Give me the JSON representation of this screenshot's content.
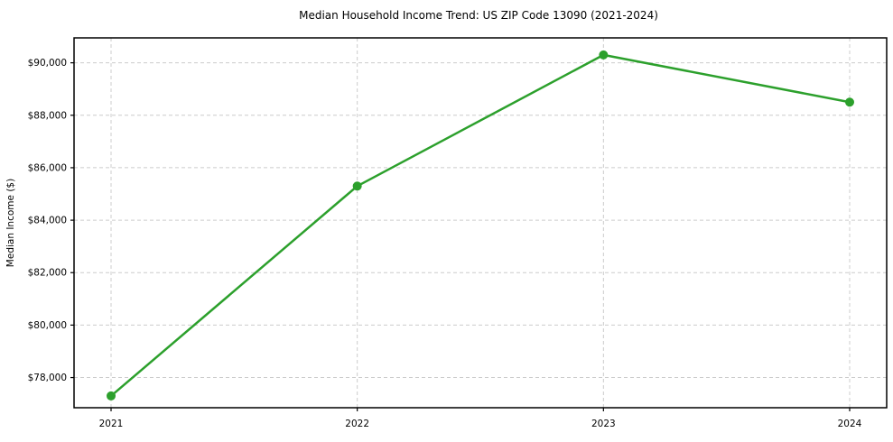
{
  "chart_data": {
    "type": "line",
    "title": "Median Household Income Trend: US ZIP Code 13090 (2021-2024)",
    "xlabel": "",
    "ylabel": "Median Income ($)",
    "categories": [
      "2021",
      "2022",
      "2023",
      "2024"
    ],
    "series": [
      {
        "name": "Median Household Income",
        "values": [
          77300,
          85300,
          90300,
          88500
        ]
      }
    ],
    "yticks": [
      78000,
      80000,
      82000,
      84000,
      86000,
      88000,
      90000
    ],
    "ytick_labels": [
      "$78,000",
      "$80,000",
      "$82,000",
      "$84,000",
      "$86,000",
      "$88,000",
      "$90,000"
    ],
    "ylim": [
      76850,
      90950
    ],
    "grid": true,
    "legend": "none",
    "colors": {
      "line": "#2ca02c",
      "marker": "#2ca02c",
      "gridline": "#cccccc",
      "spine": "#000000",
      "background": "#ffffff",
      "text": "#000000"
    }
  }
}
